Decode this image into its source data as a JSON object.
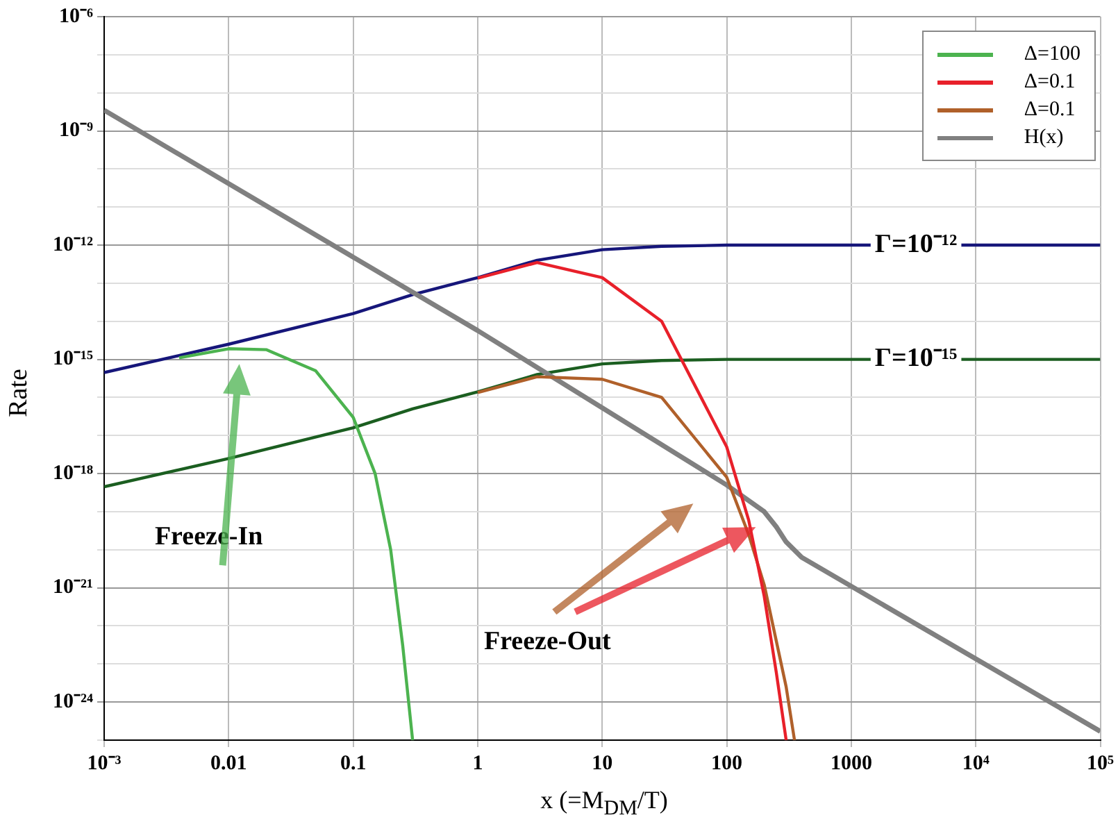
{
  "chart_data": {
    "type": "line",
    "xlabel": "x (=M$_{DM}$/T)",
    "ylabel": "Rate",
    "log": "xy",
    "grid": true,
    "legend": "top right",
    "marker": "none",
    "line_style": "solid",
    "xlim": [
      0.001,
      100000
    ],
    "ylim": [
      1e-25,
      1e-06
    ],
    "xticks": [
      {
        "value": 0.001,
        "label": "10⁻³"
      },
      0.01,
      0.1,
      1,
      10,
      100,
      1000,
      {
        "value": 10000,
        "label": "10⁴"
      },
      {
        "value": 100000,
        "label": "10⁵"
      }
    ],
    "yticks": [
      {
        "value": 1e-25,
        "label": null
      },
      {
        "value": 1e-24,
        "label": "10⁻²⁴"
      },
      {
        "value": 1e-23,
        "label": null
      },
      {
        "value": 1e-22,
        "label": null
      },
      {
        "value": 1e-21,
        "label": "10⁻²¹"
      },
      {
        "value": 1e-20,
        "label": null
      },
      {
        "value": 1e-19,
        "label": null
      },
      {
        "value": 1e-18,
        "label": "10⁻¹⁸"
      },
      {
        "value": 1e-17,
        "label": null
      },
      {
        "value": 1e-16,
        "label": null
      },
      {
        "value": 1e-15,
        "label": "10⁻¹⁵"
      },
      {
        "value": 1e-14,
        "label": null
      },
      {
        "value": 1e-13,
        "label": null
      },
      {
        "value": 1e-12,
        "label": "10⁻¹²"
      },
      {
        "value": 1e-11,
        "label": null
      },
      {
        "value": 1e-10,
        "label": null
      },
      {
        "value": 1e-09,
        "label": "10⁻⁹"
      },
      {
        "value": 1e-08,
        "label": null
      },
      {
        "value": 1e-07,
        "label": null
      },
      {
        "value": 1e-06,
        "label": "10⁻⁶"
      }
    ],
    "series": [
      {
        "name": "Δ=100",
        "color": "#4cb34f",
        "x": [
          0.004,
          0.01,
          0.02,
          0.05,
          0.1,
          0.15,
          0.2,
          0.25,
          0.3
        ],
        "values": [
          1.1e-15,
          1.9e-15,
          1.8e-15,
          5e-16,
          3e-17,
          1e-18,
          1e-20,
          3e-23,
          1e-25
        ]
      },
      {
        "name": "Δ=0.1",
        "color": "#e8202a",
        "x": [
          1,
          3,
          10,
          30,
          100,
          150,
          200,
          250,
          300
        ],
        "values": [
          1.35e-13,
          3.5e-13,
          1.4e-13,
          1e-14,
          5e-18,
          6e-20,
          6e-22,
          6e-24,
          1e-25
        ]
      },
      {
        "name": "Δ=0.1",
        "color": "#b0602a",
        "x": [
          1,
          3,
          10,
          30,
          100,
          150,
          200,
          300,
          350
        ],
        "values": [
          1.35e-16,
          3.5e-16,
          3e-16,
          1e-16,
          8e-19,
          2.5e-20,
          1.2e-21,
          2.5e-24,
          1e-25
        ]
      },
      {
        "name": "H(x)",
        "color": "#808080",
        "x": [
          0.001,
          1,
          100,
          200,
          250,
          300,
          400,
          100000
        ],
        "values": [
          3.5e-09,
          5.7e-15,
          5e-19,
          1e-19,
          4e-20,
          1.6e-20,
          6.3e-21,
          1.7e-25
        ]
      },
      {
        "color": "#16167a",
        "x": [
          0.001,
          0.01,
          0.1,
          0.3,
          1,
          3,
          10,
          30,
          100,
          1000,
          100000
        ],
        "values": [
          4.5e-16,
          2.5e-15,
          1.6e-14,
          5e-14,
          1.4e-13,
          4e-13,
          7.6e-13,
          9.3e-13,
          1e-12,
          1e-12,
          1e-12
        ]
      },
      {
        "color": "#1b5e20",
        "x": [
          0.001,
          0.01,
          0.1,
          0.3,
          1,
          3,
          10,
          30,
          100,
          1000,
          100000
        ],
        "values": [
          4.5e-19,
          2.5e-18,
          1.6e-17,
          5e-17,
          1.4e-16,
          4e-16,
          7.6e-16,
          9.3e-16,
          1e-15,
          1e-15,
          1e-15
        ]
      }
    ],
    "annotations": [
      "Γ=10⁻¹²",
      "Γ=10⁻¹⁵",
      "Freeze-In",
      "Freeze-Out"
    ]
  }
}
